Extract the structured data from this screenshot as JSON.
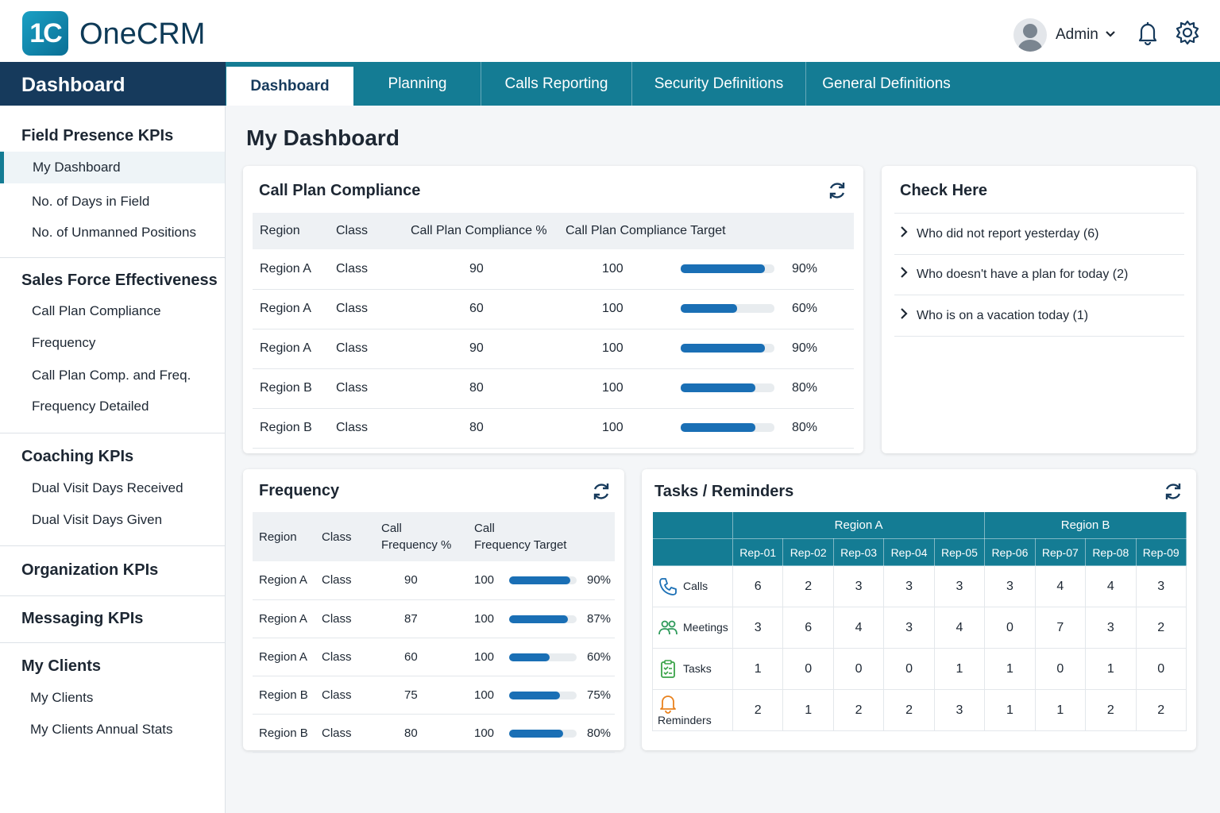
{
  "brand": {
    "logo_mark": "1C",
    "name": "OneCRM",
    "accent": "#147c94",
    "dark": "#163a5c"
  },
  "user": {
    "name": "Admin",
    "icons": [
      "avatar-icon",
      "chevron-down-icon",
      "bell-icon",
      "gear-icon"
    ]
  },
  "nav": {
    "section_title": "Dashboard",
    "tabs": [
      {
        "label": "Dashboard"
      },
      {
        "label": "Planning"
      },
      {
        "label": "Calls Reporting"
      },
      {
        "label": "Security Definitions"
      },
      {
        "label": "General Definitions"
      }
    ]
  },
  "sidebar": {
    "field_presence": {
      "title": "Field Presence KPIs",
      "items": [
        "My Dashboard",
        "No. of Days in Field",
        "No. of Unmanned Positions"
      ]
    },
    "sales_force": {
      "title": "Sales Force Effectiveness",
      "items": [
        "Call Plan Compliance",
        "Frequency",
        "Call Plan Comp. and Freq.",
        "Frequency Detailed"
      ]
    },
    "coaching": {
      "title": "Coaching KPIs",
      "items": [
        "Dual Visit Days Received",
        "Dual Visit Days Given"
      ]
    },
    "organization": {
      "title": "Organization KPIs"
    },
    "messaging": {
      "title": "Messaging KPIs"
    },
    "my_clients": {
      "title": "My Clients",
      "items": [
        "My Clients",
        "My Clients Annual Stats"
      ]
    }
  },
  "page_title": "My Dashboard",
  "call_plan": {
    "title": "Call Plan Compliance",
    "headers": [
      "Region",
      "Class",
      "Call Plan Compliance %",
      "Call Plan Compliance Target"
    ],
    "rows": [
      {
        "region": "Region A",
        "class": "Class",
        "pct": "90",
        "target": "100",
        "progress": 0.9,
        "label": "90%"
      },
      {
        "region": "Region A",
        "class": "Class",
        "pct": "60",
        "target": "100",
        "progress": 0.6,
        "label": "60%"
      },
      {
        "region": "Region A",
        "class": "Class",
        "pct": "90",
        "target": "100",
        "progress": 0.9,
        "label": "90%"
      },
      {
        "region": "Region B",
        "class": "Class",
        "pct": "80",
        "target": "100",
        "progress": 0.8,
        "label": "80%"
      },
      {
        "region": "Region B",
        "class": "Class",
        "pct": "80",
        "target": "100",
        "progress": 0.8,
        "label": "80%"
      }
    ]
  },
  "check_here": {
    "title": "Check Here",
    "items": [
      "Who did not report yesterday (6)",
      "Who doesn't have a plan for today (2)",
      "Who is on a vacation today (1)"
    ]
  },
  "frequency": {
    "title": "Frequency",
    "headers": {
      "region": "Region",
      "class": "Class",
      "freq_a": "Call",
      "freq_b": "Frequency %",
      "target_a": "Call",
      "target_b": "Frequency Target"
    },
    "rows": [
      {
        "region": "Region A",
        "class": "Class",
        "pct": "90",
        "target": "100",
        "progress": 0.9,
        "label": "90%"
      },
      {
        "region": "Region A",
        "class": "Class",
        "pct": "87",
        "target": "100",
        "progress": 0.87,
        "label": "87%"
      },
      {
        "region": "Region A",
        "class": "Class",
        "pct": "60",
        "target": "100",
        "progress": 0.6,
        "label": "60%"
      },
      {
        "region": "Region B",
        "class": "Class",
        "pct": "75",
        "target": "100",
        "progress": 0.75,
        "label": "75%"
      },
      {
        "region": "Region B",
        "class": "Class",
        "pct": "80",
        "target": "100",
        "progress": 0.8,
        "label": "80%"
      }
    ]
  },
  "tasks": {
    "title": "Tasks / Reminders",
    "region_a": "Region A",
    "region_b": "Region B",
    "reps": [
      "Rep-01",
      "Rep-02",
      "Rep-03",
      "Rep-04",
      "Rep-05",
      "Rep-06",
      "Rep-07",
      "Rep-08",
      "Rep-09"
    ],
    "rows": [
      {
        "label": "Calls",
        "icon": "phone-icon",
        "color": "#1a6fb5",
        "values": [
          "6",
          "2",
          "3",
          "3",
          "3",
          "3",
          "4",
          "4",
          "3"
        ]
      },
      {
        "label": "Meetings",
        "icon": "people-icon",
        "color": "#2e9a5b",
        "values": [
          "3",
          "6",
          "4",
          "3",
          "4",
          "0",
          "7",
          "3",
          "2"
        ]
      },
      {
        "label": "Tasks",
        "icon": "clipboard-icon",
        "color": "#3aa348",
        "values": [
          "1",
          "0",
          "0",
          "0",
          "1",
          "1",
          "0",
          "1",
          "0"
        ]
      },
      {
        "label": "Reminders",
        "icon": "bell-icon",
        "color": "#e9821e",
        "values": [
          "2",
          "1",
          "2",
          "2",
          "3",
          "1",
          "1",
          "2",
          "2"
        ]
      }
    ]
  }
}
